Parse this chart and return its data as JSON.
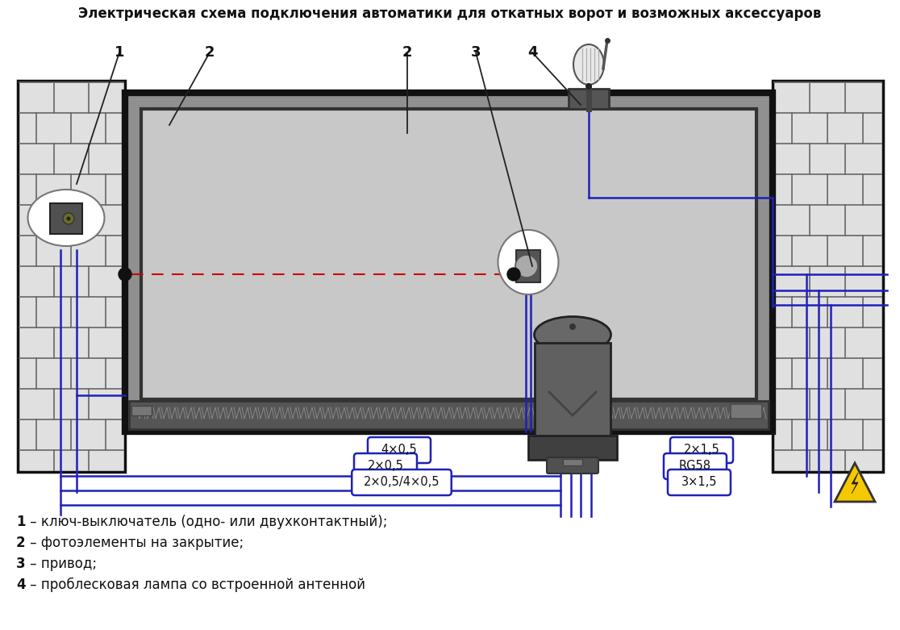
{
  "title": "Электрическая схема подключения автоматики для откатных ворот и возможных аксессуаров",
  "title_fontsize": 12,
  "legend_items": [
    "1 – ключ-выключатель (одно- или двухконтактный);",
    "2 – фотоэлементы на закрытие;",
    "3 – привод;",
    "4 – проблесковая лампа со встроенной антенной"
  ],
  "bg_color": "#ffffff",
  "blue_wire": "#2020bb",
  "red_dashed": "#cc0000",
  "wall_fill": "#e0e0e0",
  "wall_border": "#111111",
  "gate_fill": "#aaaaaa",
  "gate_border": "#111111",
  "gate_inner_fill": "#c0c0c0",
  "rail_fill": "#606060",
  "motor_fill": "#555555",
  "motor_dark": "#333333"
}
